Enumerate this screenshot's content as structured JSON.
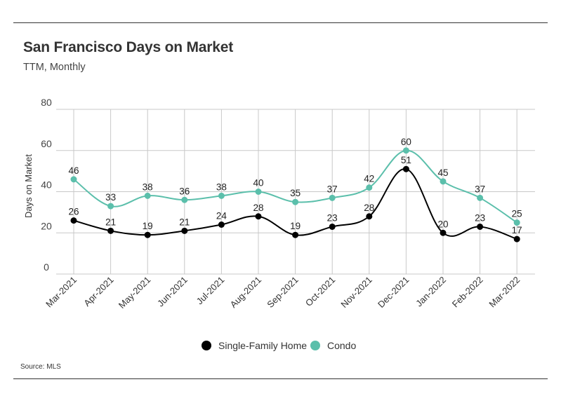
{
  "header": {
    "title": "San Francisco Days on Market",
    "subtitle": "TTM, Monthly"
  },
  "footer": {
    "source": "Source:  MLS"
  },
  "colors": {
    "single_family": "#000000",
    "condo": "#5bbfab",
    "grid": "#c8c8c8"
  },
  "chart_data": {
    "type": "line",
    "title": "San Francisco Days on Market",
    "subtitle": "TTM, Monthly",
    "xlabel": "",
    "ylabel": "Days on Market",
    "ylim": [
      0,
      80
    ],
    "yticks": [
      0,
      20,
      40,
      60,
      80
    ],
    "grid": true,
    "legend_position": "bottom-center",
    "categories": [
      "Mar-2021",
      "Apr-2021",
      "May-2021",
      "Jun-2021",
      "Jul-2021",
      "Aug-2021",
      "Sep-2021",
      "Oct-2021",
      "Nov-2021",
      "Dec-2021",
      "Jan-2022",
      "Feb-2022",
      "Mar-2022"
    ],
    "series": [
      {
        "name": "Single-Family Home",
        "color": "#000000",
        "values": [
          26,
          21,
          19,
          21,
          24,
          28,
          19,
          23,
          28,
          51,
          20,
          23,
          17
        ]
      },
      {
        "name": "Condo",
        "color": "#5bbfab",
        "values": [
          46,
          33,
          38,
          36,
          38,
          40,
          35,
          37,
          42,
          60,
          45,
          37,
          25
        ]
      }
    ]
  }
}
